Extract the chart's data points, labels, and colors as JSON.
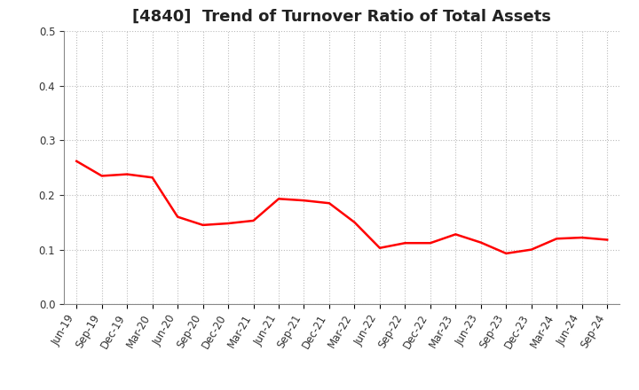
{
  "title": "[4840]  Trend of Turnover Ratio of Total Assets",
  "x_labels": [
    "Jun-19",
    "Sep-19",
    "Dec-19",
    "Mar-20",
    "Jun-20",
    "Sep-20",
    "Dec-20",
    "Mar-21",
    "Jun-21",
    "Sep-21",
    "Dec-21",
    "Mar-22",
    "Jun-22",
    "Sep-22",
    "Dec-22",
    "Mar-23",
    "Jun-23",
    "Sep-23",
    "Dec-23",
    "Mar-24",
    "Jun-24",
    "Sep-24"
  ],
  "y_values": [
    0.262,
    0.235,
    0.238,
    0.232,
    0.16,
    0.145,
    0.148,
    0.153,
    0.193,
    0.19,
    0.185,
    0.15,
    0.103,
    0.112,
    0.112,
    0.128,
    0.113,
    0.093,
    0.1,
    0.12,
    0.122,
    0.118
  ],
  "line_color": "#FF0000",
  "line_width": 1.8,
  "ylim": [
    0.0,
    0.5
  ],
  "yticks": [
    0.0,
    0.1,
    0.2,
    0.3,
    0.4,
    0.5
  ],
  "background_color": "#ffffff",
  "grid_color": "#bbbbbb",
  "title_fontsize": 13,
  "tick_fontsize": 8.5,
  "title_color": "#222222"
}
